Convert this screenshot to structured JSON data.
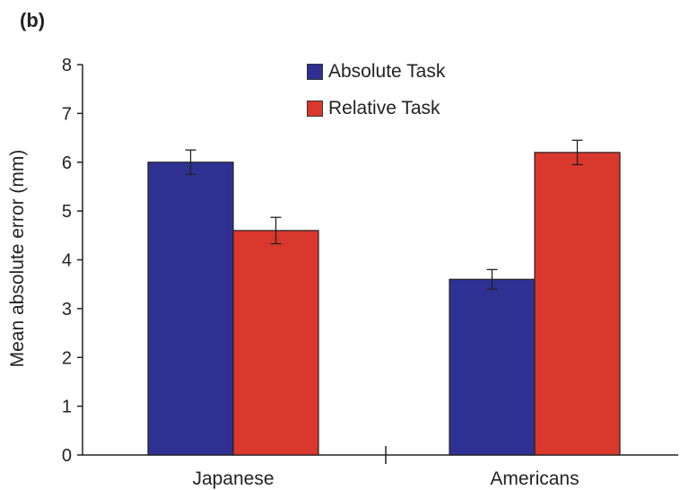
{
  "panel_label": "(b)",
  "chart_data": {
    "type": "bar",
    "categories": [
      "Japanese",
      "Americans"
    ],
    "series": [
      {
        "name": "Absolute Task",
        "values": [
          6.0,
          3.6
        ],
        "errors": [
          0.25,
          0.2
        ],
        "color": "#2e3192"
      },
      {
        "name": "Relative Task",
        "values": [
          4.6,
          6.2
        ],
        "errors": [
          0.27,
          0.25
        ],
        "color": "#d9382c"
      }
    ],
    "ylabel": "Mean absolute error (mm)",
    "xlabel": "",
    "ylim": [
      0,
      8
    ],
    "yticks": [
      "0",
      "1",
      "2",
      "3",
      "4",
      "5",
      "6",
      "7",
      "8"
    ],
    "grid": false,
    "legend_position": "top-center"
  }
}
